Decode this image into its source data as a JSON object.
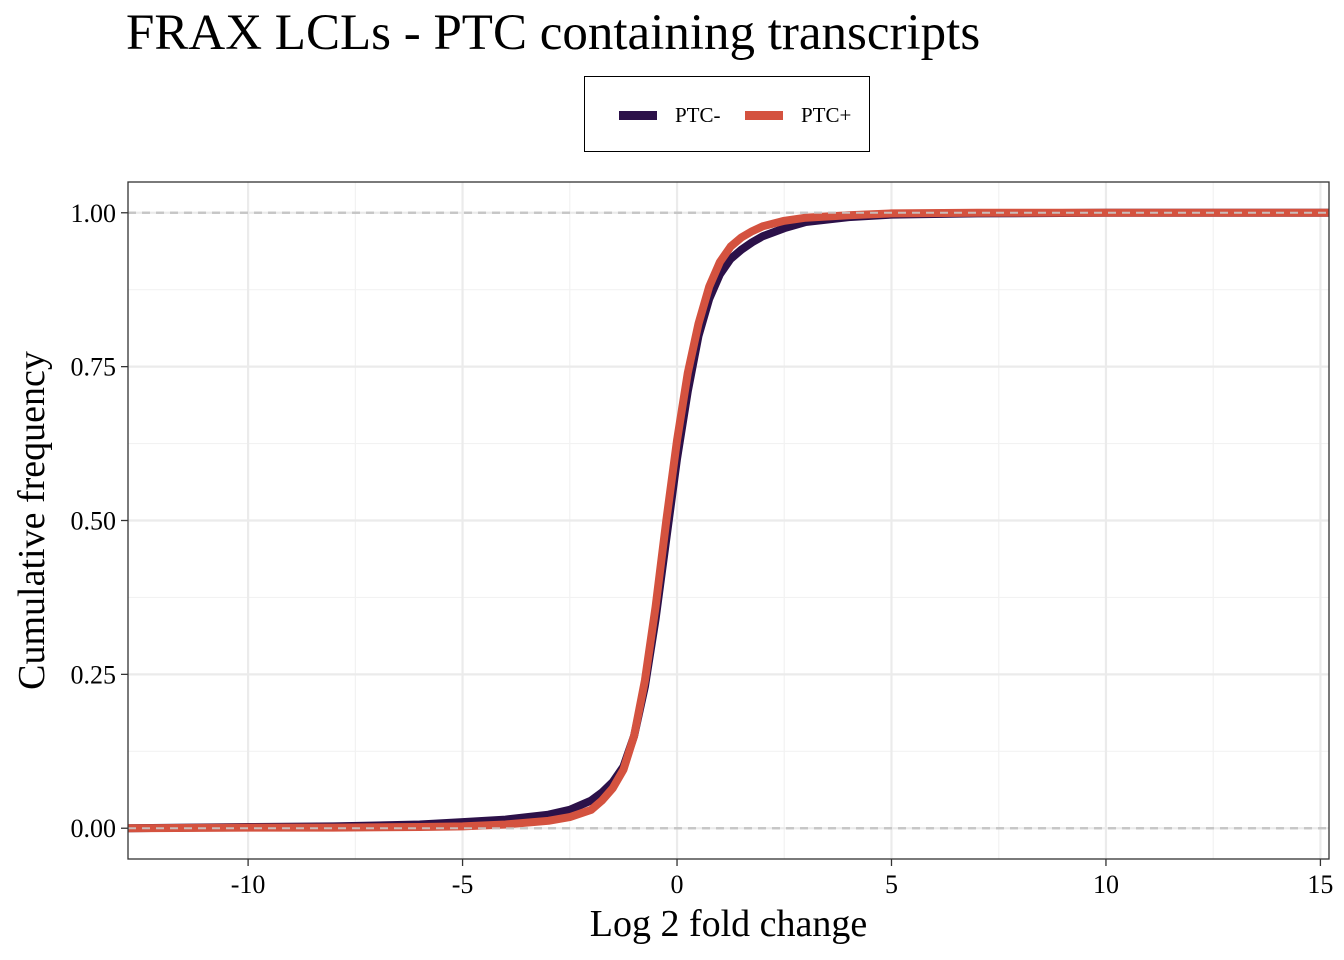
{
  "chart_data": {
    "type": "line",
    "title": "FRAX LCLs - PTC containing transcripts",
    "xlabel": "Log 2 fold change",
    "ylabel": "Cumulative frequency",
    "xlim": [
      -12.8,
      15.2
    ],
    "ylim": [
      -0.05,
      1.05
    ],
    "x_ticks": [
      -10,
      -5,
      0,
      5,
      10,
      15
    ],
    "x_tick_labels": [
      "-10",
      "-5",
      "0",
      "5",
      "10",
      "15"
    ],
    "y_ticks": [
      0,
      0.25,
      0.5,
      0.75,
      1.0
    ],
    "y_tick_labels": [
      "0.00",
      "0.25",
      "0.50",
      "0.75",
      "1.00"
    ],
    "reference_lines": [
      0,
      1
    ],
    "grid": true,
    "legend_position": "top",
    "series": [
      {
        "name": "PTC-",
        "color": "#2c1149",
        "x": [
          -12.8,
          -10,
          -8,
          -6,
          -5,
          -4,
          -3,
          -2.5,
          -2,
          -1.75,
          -1.5,
          -1.25,
          -1,
          -0.75,
          -0.5,
          -0.25,
          0,
          0.25,
          0.5,
          0.75,
          1,
          1.25,
          1.5,
          1.75,
          2,
          2.5,
          3,
          4,
          5,
          7,
          10,
          15.2
        ],
        "y": [
          0.0,
          0.002,
          0.003,
          0.006,
          0.01,
          0.014,
          0.022,
          0.03,
          0.045,
          0.058,
          0.075,
          0.1,
          0.15,
          0.23,
          0.34,
          0.47,
          0.6,
          0.71,
          0.8,
          0.86,
          0.9,
          0.925,
          0.94,
          0.952,
          0.962,
          0.975,
          0.985,
          0.993,
          0.997,
          0.999,
          1.0,
          1.0
        ]
      },
      {
        "name": "PTC+",
        "color": "#d4523f",
        "x": [
          -12.8,
          -10,
          -8,
          -6,
          -5,
          -4,
          -3,
          -2.5,
          -2,
          -1.75,
          -1.5,
          -1.25,
          -1,
          -0.75,
          -0.5,
          -0.25,
          0,
          0.25,
          0.5,
          0.75,
          1,
          1.25,
          1.5,
          1.75,
          2,
          2.5,
          3,
          4,
          5,
          7,
          10,
          15.2
        ],
        "y": [
          0.0,
          0.001,
          0.001,
          0.002,
          0.003,
          0.006,
          0.012,
          0.018,
          0.03,
          0.045,
          0.065,
          0.095,
          0.15,
          0.24,
          0.36,
          0.5,
          0.63,
          0.74,
          0.82,
          0.88,
          0.92,
          0.945,
          0.96,
          0.97,
          0.978,
          0.987,
          0.992,
          0.996,
          0.999,
          1.0,
          1.0,
          1.0
        ]
      }
    ]
  }
}
